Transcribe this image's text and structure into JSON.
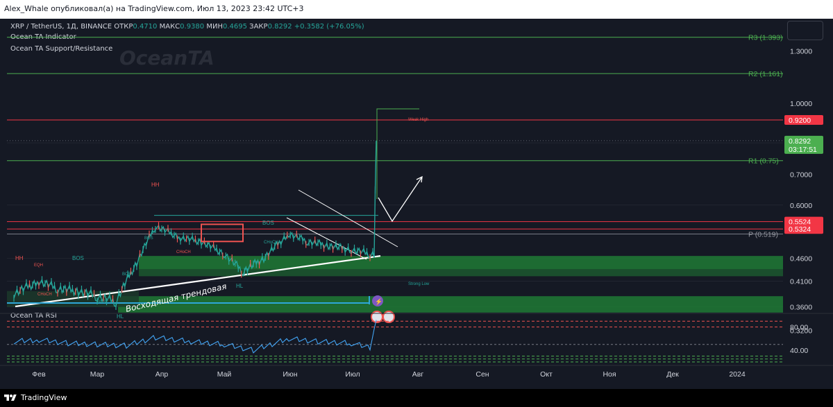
{
  "header": {
    "caption": "Alex_Whale опубликовал(а) на TradingView.com, Июл 13, 2023 23:42 UTC+3"
  },
  "legend": {
    "symbol": "XRP / TetherUS, 1Д, BINANCE",
    "open_label": "ОТКР",
    "open": "0.4710",
    "high_label": "МАКС",
    "high": "0.9380",
    "low_label": "МИН",
    "low": "0.4695",
    "close_label": "ЗАКР",
    "close": "0.8292",
    "change": "+0.3582 (+76.05%)",
    "indicator1": "Ocean TA Indicator",
    "indicator2": "Ocean TA Support/Resistance",
    "rsi": "Ocean TA RSI"
  },
  "watermark": "OceanTA",
  "footer": {
    "brand": "TradingView"
  },
  "colors": {
    "background": "#151924",
    "up": "#26a69a",
    "down": "#ef5350",
    "green_zone": "#1f7a35",
    "resistance": "#f23645",
    "pivot": "#4caf50",
    "rsi_line": "#2962ff"
  },
  "chart_data": [
    {
      "type": "line",
      "title": "XRP / TetherUS, 1Д, BINANCE",
      "x_ticks": [
        "Фев",
        "Мар",
        "Апр",
        "Май",
        "Июн",
        "Июл",
        "Авг",
        "Сен",
        "Окт",
        "Ноя",
        "Дек",
        "2024"
      ],
      "y_ticks": [
        "1.3000",
        "1.0000",
        "0.7000",
        "0.6000",
        "0.4600",
        "0.4100",
        "0.3600",
        "0.3200"
      ],
      "log_scale": true,
      "ylim": [
        0.3,
        1.45
      ],
      "price_labels": [
        {
          "value": "0.9200",
          "color": "#f23645"
        },
        {
          "value": "0.8292",
          "countdown": "03:17:51",
          "color": "#4caf50"
        },
        {
          "value": "0.5524",
          "color": "#f23645"
        },
        {
          "value": "0.5324",
          "color": "#f23645"
        }
      ],
      "levels": [
        {
          "label": "R3 (1.393)",
          "value": 1.393
        },
        {
          "label": "R2 (1.161)",
          "value": 1.161
        },
        {
          "label": "R1 (0.75)",
          "value": 0.75
        },
        {
          "label": "P (0.519)",
          "value": 0.519
        }
      ],
      "resistance_lines": [
        0.92,
        0.5524,
        0.5324
      ],
      "zones": [
        {
          "from": 0.435,
          "to": 0.465
        },
        {
          "from": 0.42,
          "to": 0.435
        },
        {
          "from": 0.35,
          "to": 0.38
        }
      ],
      "annotations": [
        "HH",
        "HH",
        "BOS",
        "BOS",
        "EQH",
        "CHoCH",
        "CHoCH",
        "CHoCH",
        "BOS",
        "BOS",
        "BOS",
        "HL",
        "HL",
        "Weak High",
        "Strong Low",
        "Восходящая трендовая"
      ],
      "series": [
        {
          "name": "XRP / TetherUS",
          "x": [
            "2023-01-20",
            "2023-02-01",
            "2023-02-10",
            "2023-02-20",
            "2023-03-01",
            "2023-03-10",
            "2023-03-20",
            "2023-03-29",
            "2023-04-10",
            "2023-04-20",
            "2023-05-01",
            "2023-05-10",
            "2023-05-20",
            "2023-06-01",
            "2023-06-10",
            "2023-06-20",
            "2023-07-01",
            "2023-07-10",
            "2023-07-12",
            "2023-07-13"
          ],
          "values": [
            0.385,
            0.41,
            0.395,
            0.39,
            0.38,
            0.37,
            0.45,
            0.54,
            0.51,
            0.5,
            0.47,
            0.43,
            0.46,
            0.52,
            0.5,
            0.49,
            0.48,
            0.47,
            0.47,
            0.8292
          ]
        }
      ]
    },
    {
      "type": "line",
      "title": "Ocean TA RSI",
      "y_ticks": [
        "80.00",
        "40.00"
      ],
      "series": [
        {
          "name": "Ocean TA RSI",
          "x": [
            "2023-01-20",
            "2023-02-01",
            "2023-02-15",
            "2023-03-01",
            "2023-03-15",
            "2023-03-29",
            "2023-04-15",
            "2023-05-01",
            "2023-05-15",
            "2023-06-01",
            "2023-06-15",
            "2023-07-01",
            "2023-07-10",
            "2023-07-13"
          ],
          "values": [
            55,
            58,
            52,
            50,
            48,
            62,
            55,
            50,
            40,
            60,
            55,
            52,
            45,
            92
          ]
        }
      ]
    }
  ]
}
